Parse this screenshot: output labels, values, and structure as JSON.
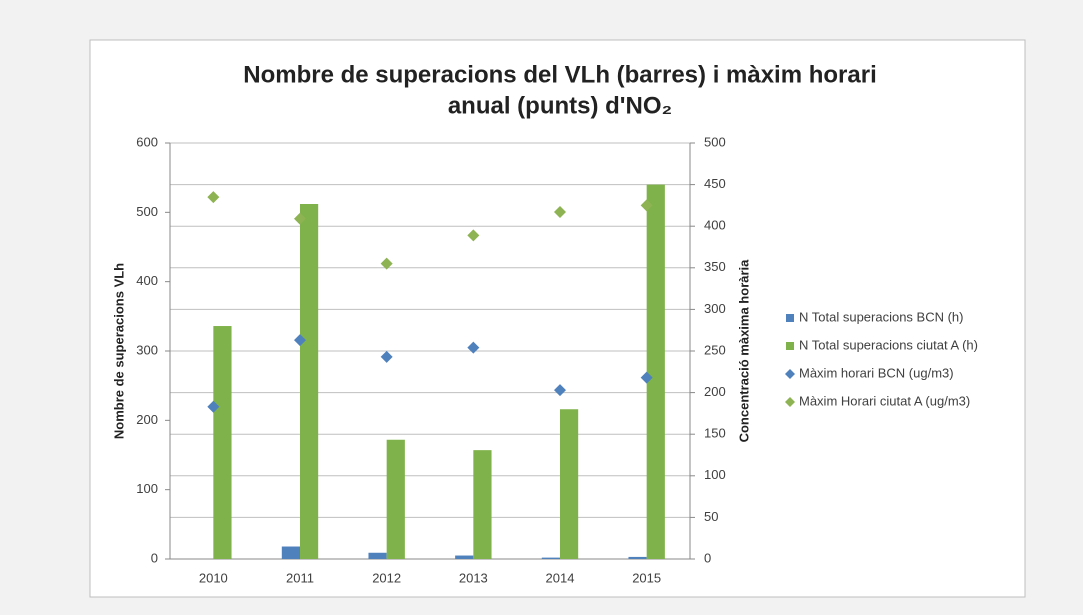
{
  "chart_data": {
    "type": "combo",
    "title": [
      "Nombre de superacions del VLh (barres) i màxim horari",
      "anual (punts) d'NO₂"
    ],
    "ylabel": "Nombre de superacions VLh",
    "y2label": "Concentració màxima horària",
    "categories": [
      "2010",
      "2011",
      "2012",
      "2013",
      "2014",
      "2015"
    ],
    "series": [
      {
        "name": "N Total superacions BCN (h)",
        "type": "bar",
        "color": "#4f81bd",
        "values": [
          0,
          18,
          9,
          5,
          2,
          3
        ]
      },
      {
        "name": "N Total superacions ciutat A (h)",
        "type": "bar",
        "color": "#7fb24a",
        "values": [
          336,
          512,
          172,
          157,
          216,
          540
        ]
      },
      {
        "name": "Màxim horari BCN (ug/m3)",
        "type": "scatter",
        "axis": "y2",
        "color": "#4f81bd",
        "values": [
          183,
          263,
          243,
          254,
          203,
          218
        ]
      },
      {
        "name": "Màxim Horari ciutat A (ug/m3)",
        "type": "scatter",
        "axis": "y2",
        "color": "#8db353",
        "values": [
          435,
          409,
          355,
          389,
          417,
          425
        ]
      }
    ],
    "ylim": [
      0,
      600
    ],
    "yticks": [
      0,
      100,
      200,
      300,
      400,
      500,
      600
    ],
    "y2lim": [
      0,
      500
    ],
    "y2ticks": [
      0,
      50,
      100,
      150,
      200,
      250,
      300,
      350,
      400,
      450,
      500
    ],
    "grid": true,
    "legend": "right"
  }
}
